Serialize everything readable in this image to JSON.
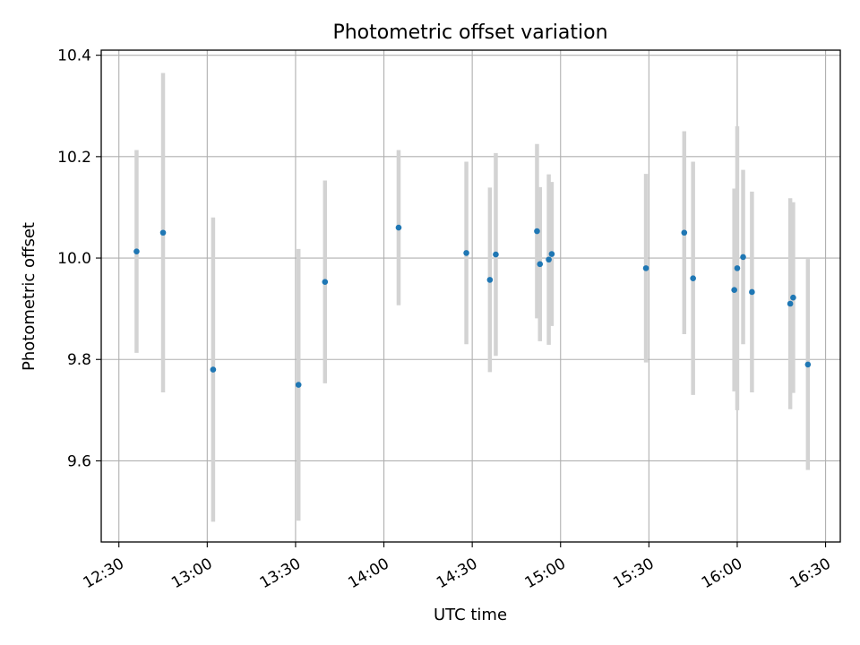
{
  "chart_data": {
    "type": "scatter",
    "title": "Photometric offset variation",
    "xlabel": "UTC time",
    "ylabel": "Photometric offset",
    "xlim": [
      "12:24",
      "16:35"
    ],
    "ylim": [
      9.44,
      10.41
    ],
    "x_ticks": [
      "12:30",
      "13:00",
      "13:30",
      "14:00",
      "14:30",
      "15:00",
      "15:30",
      "16:00",
      "16:30"
    ],
    "y_ticks": [
      9.6,
      9.8,
      10.0,
      10.2,
      10.4
    ],
    "y_tick_labels": [
      "9.6",
      "9.8",
      "10.0",
      "10.2",
      "10.4"
    ],
    "grid": true,
    "errorbar_color": "#d3d3d3",
    "marker_color": "#1f77b4",
    "points": [
      {
        "x": "12:36",
        "y": 10.013,
        "err": 0.2
      },
      {
        "x": "12:45",
        "y": 10.05,
        "err": 0.315
      },
      {
        "x": "13:02",
        "y": 9.78,
        "err": 0.3
      },
      {
        "x": "13:31",
        "y": 9.75,
        "err": 0.268
      },
      {
        "x": "13:40",
        "y": 9.953,
        "err": 0.2
      },
      {
        "x": "14:05",
        "y": 10.06,
        "err": 0.153
      },
      {
        "x": "14:28",
        "y": 10.01,
        "err": 0.18
      },
      {
        "x": "14:36",
        "y": 9.957,
        "err": 0.182
      },
      {
        "x": "14:38",
        "y": 10.007,
        "err": 0.2
      },
      {
        "x": "14:52",
        "y": 10.053,
        "err": 0.172
      },
      {
        "x": "14:53",
        "y": 9.988,
        "err": 0.152
      },
      {
        "x": "14:56",
        "y": 9.997,
        "err": 0.168
      },
      {
        "x": "14:57",
        "y": 10.008,
        "err": 0.142
      },
      {
        "x": "15:29",
        "y": 9.98,
        "err": 0.186
      },
      {
        "x": "15:42",
        "y": 10.05,
        "err": 0.2
      },
      {
        "x": "15:45",
        "y": 9.96,
        "err": 0.23
      },
      {
        "x": "15:59",
        "y": 9.937,
        "err": 0.2
      },
      {
        "x": "16:00",
        "y": 9.98,
        "err": 0.28
      },
      {
        "x": "16:02",
        "y": 10.002,
        "err": 0.172
      },
      {
        "x": "16:05",
        "y": 9.933,
        "err": 0.198
      },
      {
        "x": "16:18",
        "y": 9.91,
        "err": 0.208
      },
      {
        "x": "16:19",
        "y": 9.922,
        "err": 0.188
      },
      {
        "x": "16:24",
        "y": 9.79,
        "err": 0.208
      }
    ]
  }
}
